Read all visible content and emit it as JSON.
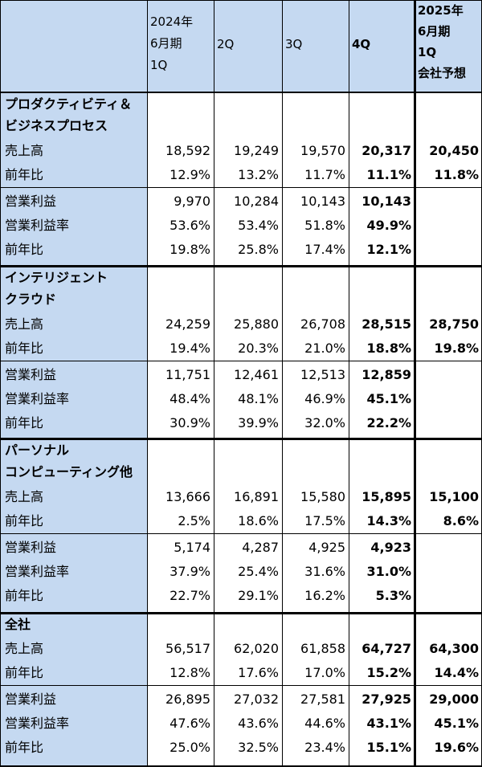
{
  "header": {
    "q1": [
      "2024年",
      "6月期",
      "1Q"
    ],
    "q2": "2Q",
    "q3": "3Q",
    "q4": "4Q",
    "forecast": [
      "2025年",
      "6月期",
      "1Q",
      "会社予想"
    ]
  },
  "labels": {
    "revenue": "売上高",
    "yoy": "前年比",
    "op_income": "営業利益",
    "op_margin": "営業利益率"
  },
  "segments": [
    {
      "title": [
        "プロダクティビティ＆",
        "ビジネスプロセス"
      ],
      "revenue": [
        "18,592",
        "19,249",
        "19,570",
        "20,317",
        "20,450"
      ],
      "revenue_yoy": [
        "12.9%",
        "13.2%",
        "11.7%",
        "11.1%",
        "11.8%"
      ],
      "op_income": [
        "9,970",
        "10,284",
        "10,143",
        "10,143",
        ""
      ],
      "op_margin": [
        "53.6%",
        "53.4%",
        "51.8%",
        "49.9%",
        ""
      ],
      "op_yoy": [
        "19.8%",
        "25.8%",
        "17.4%",
        "12.1%",
        ""
      ]
    },
    {
      "title": [
        "インテリジェント",
        "クラウド"
      ],
      "revenue": [
        "24,259",
        "25,880",
        "26,708",
        "28,515",
        "28,750"
      ],
      "revenue_yoy": [
        "19.4%",
        "20.3%",
        "21.0%",
        "18.8%",
        "19.8%"
      ],
      "op_income": [
        "11,751",
        "12,461",
        "12,513",
        "12,859",
        ""
      ],
      "op_margin": [
        "48.4%",
        "48.1%",
        "46.9%",
        "45.1%",
        ""
      ],
      "op_yoy": [
        "30.9%",
        "39.9%",
        "32.0%",
        "22.2%",
        ""
      ]
    },
    {
      "title": [
        "パーソナル",
        "コンピューティング他"
      ],
      "revenue": [
        "13,666",
        "16,891",
        "15,580",
        "15,895",
        "15,100"
      ],
      "revenue_yoy": [
        "2.5%",
        "18.6%",
        "17.5%",
        "14.3%",
        "8.6%"
      ],
      "op_income": [
        "5,174",
        "4,287",
        "4,925",
        "4,923",
        ""
      ],
      "op_margin": [
        "37.9%",
        "25.4%",
        "31.6%",
        "31.0%",
        ""
      ],
      "op_yoy": [
        "22.7%",
        "29.1%",
        "16.2%",
        "5.3%",
        ""
      ]
    },
    {
      "title": [
        "全社"
      ],
      "revenue": [
        "56,517",
        "62,020",
        "61,858",
        "64,727",
        "64,300"
      ],
      "revenue_yoy": [
        "12.8%",
        "17.6%",
        "17.0%",
        "15.2%",
        "14.4%"
      ],
      "op_income": [
        "26,895",
        "27,032",
        "27,581",
        "27,925",
        "29,000"
      ],
      "op_margin": [
        "47.6%",
        "43.6%",
        "44.6%",
        "43.1%",
        "45.1%"
      ],
      "op_yoy": [
        "25.0%",
        "32.5%",
        "23.4%",
        "15.1%",
        "19.6%"
      ]
    }
  ]
}
